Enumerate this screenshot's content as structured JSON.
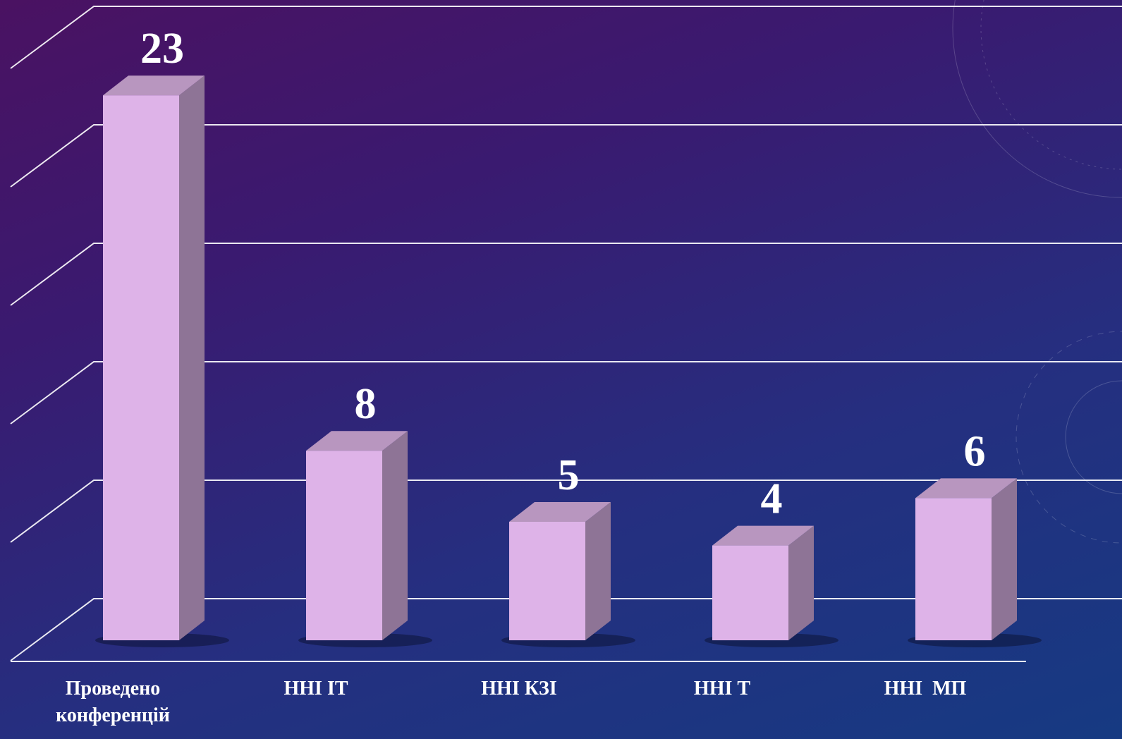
{
  "chart_data": {
    "type": "bar3d",
    "categories": [
      "Проведено конференцій",
      "ННІ ІТ",
      "ННІ КЗІ",
      "ННІ Т",
      "ННІ  МП"
    ],
    "values": [
      23,
      8,
      5,
      4,
      6
    ],
    "color": "#deb3e8",
    "ylim": [
      0,
      25
    ],
    "yticks": [
      0,
      5,
      10,
      15,
      20,
      25
    ],
    "grid": true
  }
}
